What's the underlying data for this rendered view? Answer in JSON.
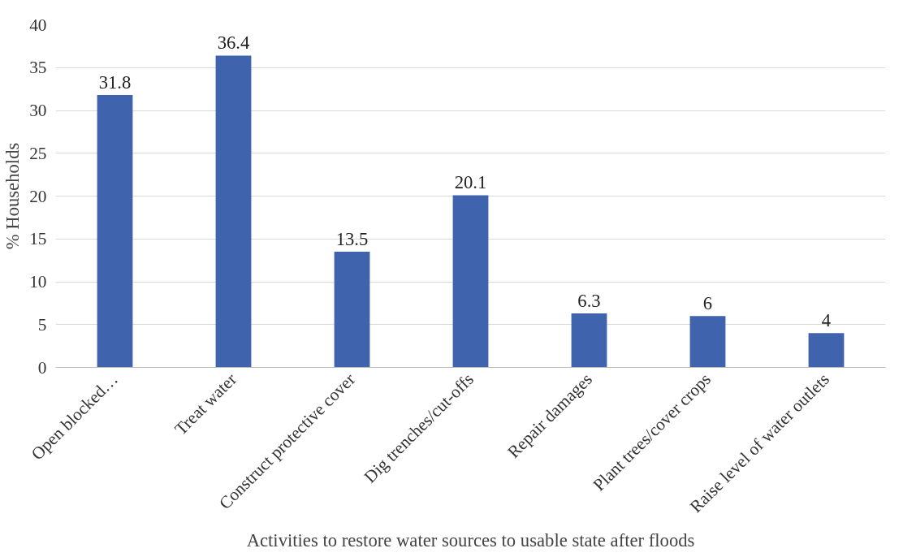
{
  "chart_data": {
    "type": "bar",
    "xlabel": "Activities to restore water sources to usable state after floods",
    "ylabel": "% Households",
    "categories": [
      "Open blocked…",
      "Treat water",
      "Construct protective cover",
      "Dig trenches/cut-offs",
      "Repair damages",
      "Plant trees/cover crops",
      "Raise level of water outlets"
    ],
    "values": [
      31.8,
      36.4,
      13.5,
      20.1,
      6.3,
      6,
      4
    ],
    "color": "#4063ad",
    "ylim": [
      0,
      40
    ],
    "yticks": [
      0,
      5,
      10,
      15,
      20,
      25,
      30,
      35,
      40
    ],
    "grid": "y",
    "data_labels": true
  }
}
